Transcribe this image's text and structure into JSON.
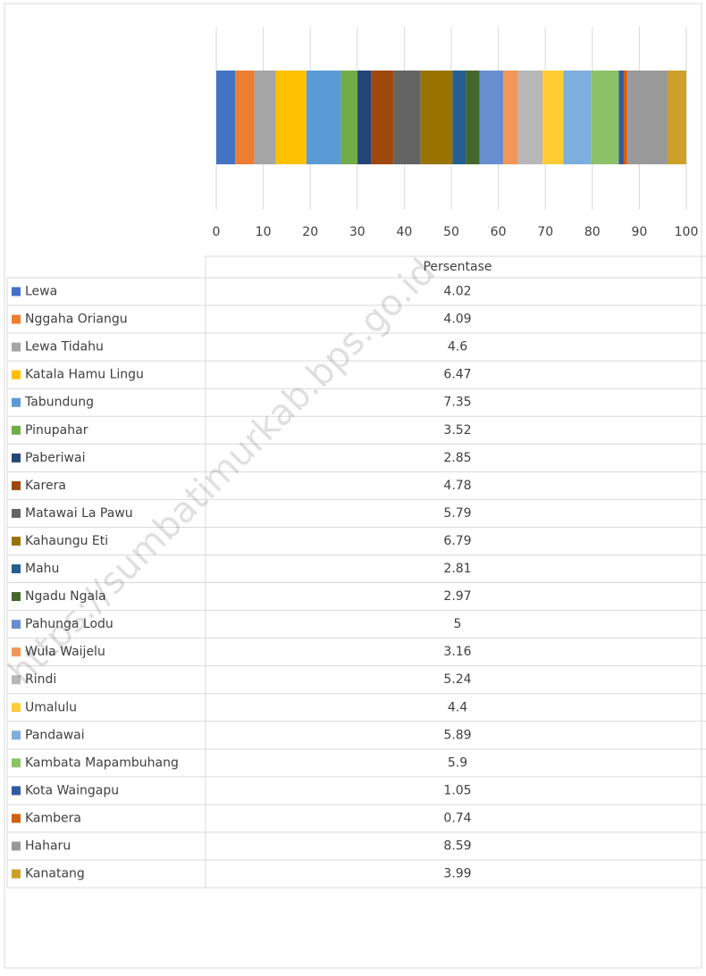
{
  "chart_data": {
    "type": "bar",
    "orientation": "horizontal",
    "stacked": true,
    "table_header": "Persentase",
    "watermark": "https://sumbatimurkab.bps.go.id",
    "xlim": [
      0,
      100
    ],
    "xticks": [
      0,
      10,
      20,
      30,
      40,
      50,
      60,
      70,
      80,
      90,
      100
    ],
    "grid": true,
    "series": [
      {
        "name": "Lewa",
        "color": "#4472c4",
        "values": [
          4.02
        ]
      },
      {
        "name": "Nggaha Oriangu",
        "color": "#ed7d31",
        "values": [
          4.09
        ]
      },
      {
        "name": "Lewa Tidahu",
        "color": "#a5a5a5",
        "values": [
          4.6
        ]
      },
      {
        "name": "Katala Hamu Lingu",
        "color": "#ffc000",
        "values": [
          6.47
        ]
      },
      {
        "name": "Tabundung",
        "color": "#5b9bd5",
        "values": [
          7.35
        ]
      },
      {
        "name": "Pinupahar",
        "color": "#70ad47",
        "values": [
          3.52
        ]
      },
      {
        "name": "Paberiwai",
        "color": "#264478",
        "values": [
          2.85
        ]
      },
      {
        "name": "Karera",
        "color": "#9e480e",
        "values": [
          4.78
        ]
      },
      {
        "name": "Matawai La Pawu",
        "color": "#636363",
        "values": [
          5.79
        ]
      },
      {
        "name": "Kahaungu Eti",
        "color": "#997300",
        "values": [
          6.79
        ]
      },
      {
        "name": "Mahu",
        "color": "#255e91",
        "values": [
          2.81
        ]
      },
      {
        "name": "Ngadu Ngala",
        "color": "#43682b",
        "values": [
          2.97
        ]
      },
      {
        "name": "Pahunga Lodu",
        "color": "#698ed0",
        "values": [
          5
        ]
      },
      {
        "name": "Wula Waijelu",
        "color": "#f1975a",
        "values": [
          3.16
        ]
      },
      {
        "name": "Rindi",
        "color": "#b7b7b7",
        "values": [
          5.24
        ]
      },
      {
        "name": "Umalulu",
        "color": "#ffcd33",
        "values": [
          4.4
        ]
      },
      {
        "name": "Pandawai",
        "color": "#7cafdd",
        "values": [
          5.89
        ]
      },
      {
        "name": "Kambata Mapambuhang",
        "color": "#8cc168",
        "values": [
          5.9
        ]
      },
      {
        "name": "Kota Waingapu",
        "color": "#335aa1",
        "values": [
          1.05
        ]
      },
      {
        "name": "Kambera",
        "color": "#d26012",
        "values": [
          0.74
        ]
      },
      {
        "name": "Haharu",
        "color": "#999999",
        "values": [
          8.59
        ]
      },
      {
        "name": "Kanatang",
        "color": "#cca02a",
        "values": [
          3.99
        ]
      }
    ]
  }
}
